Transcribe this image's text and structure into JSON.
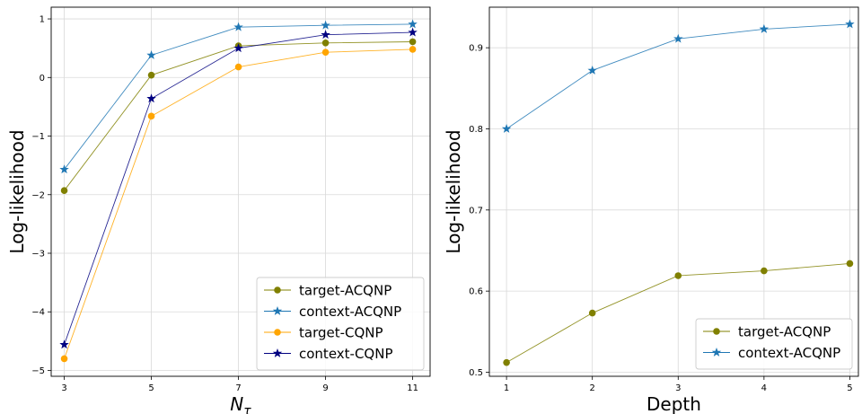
{
  "chart_data": [
    {
      "type": "line",
      "xlabel": "N",
      "xlabel_sub": "τ",
      "ylabel": "Log-likelihood",
      "x": [
        3,
        5,
        7,
        9,
        11
      ],
      "xticks": [
        "3",
        "5",
        "7",
        "9",
        "11"
      ],
      "xlim": [
        2.7,
        11.4
      ],
      "yticks": [
        1,
        0,
        -1,
        -2,
        -3,
        -4,
        -5
      ],
      "ytick_labels": [
        "1",
        "0",
        "−1",
        "−2",
        "−3",
        "−4",
        "−5"
      ],
      "ylim": [
        -5.1,
        1.2
      ],
      "grid": true,
      "legend_position": "lower-right",
      "series": [
        {
          "name": "target-ACQNP",
          "marker": "circle",
          "color": "#808000",
          "values": [
            -1.93,
            0.04,
            0.54,
            0.59,
            0.61
          ]
        },
        {
          "name": "context-ACQNP",
          "marker": "star",
          "color": "#1f77b4",
          "values": [
            -1.57,
            0.38,
            0.86,
            0.89,
            0.91
          ]
        },
        {
          "name": "target-CQNP",
          "marker": "circle",
          "color": "#ffa500",
          "values": [
            -4.8,
            -0.66,
            0.18,
            0.43,
            0.48
          ]
        },
        {
          "name": "context-CQNP",
          "marker": "star",
          "color": "#000080",
          "values": [
            -4.56,
            -0.36,
            0.5,
            0.73,
            0.77
          ]
        }
      ]
    },
    {
      "type": "line",
      "xlabel": "Depth",
      "ylabel": "Log-likelihood",
      "x": [
        1,
        2,
        3,
        4,
        5
      ],
      "xticks": [
        "1",
        "2",
        "3",
        "4",
        "5"
      ],
      "xlim": [
        0.8,
        5.1
      ],
      "yticks": [
        0.5,
        0.6,
        0.7,
        0.8,
        0.9
      ],
      "ytick_labels": [
        "0.5",
        "0.6",
        "0.7",
        "0.8",
        "0.9"
      ],
      "ylim": [
        0.495,
        0.95
      ],
      "grid": true,
      "legend_position": "lower-right",
      "series": [
        {
          "name": "target-ACQNP",
          "marker": "circle",
          "color": "#808000",
          "values": [
            0.512,
            0.573,
            0.619,
            0.625,
            0.634
          ]
        },
        {
          "name": "context-ACQNP",
          "marker": "star",
          "color": "#1f77b4",
          "values": [
            0.8,
            0.872,
            0.911,
            0.923,
            0.929
          ]
        }
      ]
    }
  ]
}
